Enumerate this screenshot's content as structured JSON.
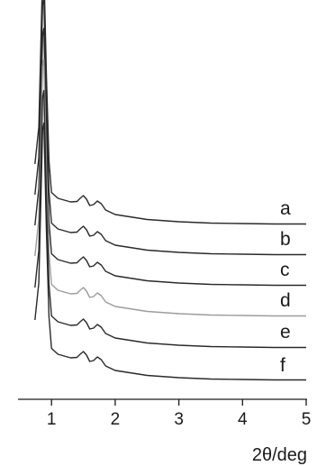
{
  "chart_data": {
    "type": "line",
    "xlabel": "2θ/deg",
    "ylabel": "",
    "xlim": [
      0.7,
      5
    ],
    "x_ticks": [
      "1",
      "2",
      "3",
      "4",
      "5"
    ],
    "grid": false,
    "series": [
      {
        "name": "a",
        "color": "#2a2a2a",
        "x": [
          0.74,
          0.8,
          0.86,
          0.88,
          0.92,
          0.96,
          1.0,
          1.1,
          1.2,
          1.3,
          1.4,
          1.45,
          1.5,
          1.55,
          1.6,
          1.66,
          1.72,
          1.78,
          1.85,
          2.0,
          2.5,
          3.0,
          3.5,
          4.0,
          4.5,
          5.0
        ],
        "y": [
          138,
          220,
          560,
          575,
          330,
          145,
          75,
          62,
          58,
          54,
          55,
          62,
          68,
          60,
          46,
          48,
          56,
          50,
          36,
          26,
          15,
          10,
          7,
          6,
          5,
          5
        ]
      },
      {
        "name": "b",
        "color": "#2a2a2a",
        "x": [
          0.74,
          0.8,
          0.86,
          0.88,
          0.92,
          0.96,
          1.0,
          1.1,
          1.2,
          1.3,
          1.4,
          1.45,
          1.5,
          1.55,
          1.6,
          1.66,
          1.72,
          1.78,
          1.85,
          2.0,
          2.5,
          3.0,
          3.5,
          4.0,
          4.5,
          5.0
        ],
        "y": [
          138,
          220,
          560,
          575,
          330,
          145,
          75,
          62,
          58,
          54,
          55,
          62,
          68,
          60,
          46,
          48,
          56,
          50,
          36,
          26,
          15,
          10,
          7,
          6,
          5,
          5
        ]
      },
      {
        "name": "c",
        "color": "#2a2a2a",
        "x": [
          0.74,
          0.8,
          0.86,
          0.88,
          0.92,
          0.96,
          1.0,
          1.1,
          1.2,
          1.3,
          1.4,
          1.45,
          1.5,
          1.55,
          1.6,
          1.66,
          1.72,
          1.78,
          1.85,
          2.0,
          2.5,
          3.0,
          3.5,
          4.0,
          4.5,
          5.0
        ],
        "y": [
          138,
          220,
          560,
          575,
          330,
          145,
          75,
          62,
          58,
          54,
          55,
          62,
          68,
          60,
          46,
          48,
          56,
          50,
          36,
          26,
          15,
          10,
          7,
          6,
          5,
          5
        ]
      },
      {
        "name": "d",
        "color": "#9c9c9c",
        "x": [
          0.74,
          0.8,
          0.86,
          0.88,
          0.92,
          0.96,
          1.0,
          1.1,
          1.2,
          1.3,
          1.4,
          1.45,
          1.5,
          1.55,
          1.6,
          1.66,
          1.72,
          1.78,
          1.85,
          2.0,
          2.5,
          3.0,
          3.5,
          4.0,
          4.5,
          5.0
        ],
        "y": [
          138,
          220,
          560,
          575,
          330,
          145,
          75,
          62,
          58,
          54,
          55,
          62,
          68,
          60,
          46,
          48,
          56,
          50,
          36,
          26,
          15,
          10,
          7,
          6,
          5,
          5
        ]
      },
      {
        "name": "e",
        "color": "#2a2a2a",
        "x": [
          0.74,
          0.8,
          0.86,
          0.88,
          0.92,
          0.96,
          1.0,
          1.1,
          1.2,
          1.3,
          1.4,
          1.45,
          1.5,
          1.55,
          1.6,
          1.66,
          1.72,
          1.78,
          1.85,
          2.0,
          2.5,
          3.0,
          3.5,
          4.0,
          4.5,
          5.0
        ],
        "y": [
          138,
          220,
          560,
          575,
          330,
          145,
          75,
          62,
          58,
          54,
          55,
          62,
          68,
          60,
          46,
          48,
          56,
          50,
          36,
          26,
          15,
          10,
          7,
          6,
          5,
          5
        ]
      },
      {
        "name": "f",
        "color": "#2a2a2a",
        "x": [
          0.74,
          0.8,
          0.86,
          0.88,
          0.92,
          0.96,
          1.0,
          1.1,
          1.2,
          1.3,
          1.4,
          1.45,
          1.5,
          1.55,
          1.6,
          1.66,
          1.72,
          1.78,
          1.85,
          2.0,
          2.5,
          3.0,
          3.5,
          4.0,
          4.5,
          5.0
        ],
        "y": [
          138,
          220,
          560,
          575,
          330,
          145,
          75,
          62,
          58,
          54,
          55,
          62,
          68,
          60,
          46,
          48,
          56,
          50,
          36,
          26,
          15,
          10,
          7,
          6,
          5,
          5
        ]
      }
    ]
  }
}
